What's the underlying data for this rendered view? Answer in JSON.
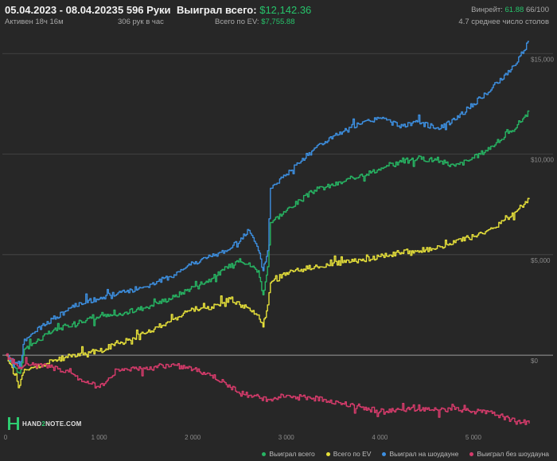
{
  "header": {
    "date_range": "05.04.2023 - 08.04.2023",
    "active": "Активен 18ч 16м",
    "hands": "5 596 Руки",
    "hands_rate": "306 рук в час",
    "won_label": "Выиграл всего:",
    "won_value": "$12,142.36",
    "ev_label": "Всего по EV:",
    "ev_value": "$7,755.88",
    "winrate_label": "Винрейт:",
    "winrate_value": "61.88",
    "winrate_tail": "66/100",
    "tables_text": "4.7 среднее число столов"
  },
  "logo": {
    "text_a": "HAND",
    "text_b": "2",
    "text_c": "NOTE.COM"
  },
  "chart_data": {
    "type": "line",
    "xlim": [
      0,
      5596
    ],
    "ylim": [
      -3600,
      16000
    ],
    "x_ticks": [
      0,
      1000,
      2000,
      3000,
      4000,
      5000
    ],
    "x_tick_labels": [
      "0",
      "1 000",
      "2 000",
      "3 000",
      "4 000",
      "5 000"
    ],
    "y_ticks": [
      0,
      5000,
      10000,
      15000
    ],
    "y_tick_labels": [
      "$0",
      "$5,000",
      "$10,000",
      "$15,000"
    ],
    "grid": true,
    "legend_position": "bottom-right",
    "series": [
      {
        "name": "Выиграл всего",
        "color": "#27b463",
        "x": [
          0,
          150,
          200,
          300,
          500,
          800,
          1000,
          1200,
          1500,
          1800,
          2000,
          2200,
          2500,
          2700,
          2750,
          2800,
          2830,
          3000,
          3300,
          3600,
          3800,
          4000,
          4200,
          4400,
          4600,
          4800,
          5000,
          5200,
          5400,
          5596
        ],
        "values": [
          0,
          -900,
          300,
          600,
          1200,
          1700,
          1900,
          2000,
          2400,
          2900,
          3400,
          3800,
          4800,
          4200,
          3000,
          4400,
          6600,
          7200,
          8200,
          8600,
          9000,
          9200,
          9600,
          9800,
          9700,
          9400,
          9800,
          10400,
          11100,
          12142
        ]
      },
      {
        "name": "Всего по EV",
        "color": "#e6e03a",
        "x": [
          0,
          150,
          200,
          300,
          500,
          800,
          1000,
          1200,
          1500,
          1800,
          2000,
          2200,
          2400,
          2700,
          2750,
          2800,
          2830,
          3000,
          3300,
          3600,
          3800,
          4000,
          4200,
          4400,
          4600,
          4800,
          5000,
          5200,
          5400,
          5596
        ],
        "values": [
          0,
          -1500,
          -700,
          -600,
          -300,
          100,
          200,
          600,
          1100,
          1800,
          2300,
          2400,
          2800,
          2000,
          1400,
          2500,
          3600,
          4100,
          4400,
          4600,
          4700,
          4900,
          5100,
          5200,
          5300,
          5600,
          5900,
          6300,
          6900,
          7756
        ]
      },
      {
        "name": "Выиграл на шоудауне",
        "color": "#3d8fe0",
        "x": [
          0,
          150,
          200,
          300,
          500,
          800,
          1000,
          1200,
          1500,
          1800,
          2000,
          2200,
          2400,
          2600,
          2700,
          2750,
          2800,
          2830,
          3000,
          3300,
          3600,
          3800,
          4000,
          4200,
          4400,
          4600,
          4800,
          5000,
          5200,
          5400,
          5596
        ],
        "values": [
          0,
          -600,
          800,
          1100,
          1800,
          2600,
          2800,
          3100,
          3400,
          4000,
          4600,
          4900,
          5300,
          6200,
          5200,
          4200,
          5200,
          8300,
          9000,
          10300,
          11100,
          11500,
          11800,
          11400,
          11600,
          11300,
          11700,
          12500,
          13300,
          14200,
          15600
        ]
      },
      {
        "name": "Выиграл без шоудауна",
        "color": "#d63b6b",
        "x": [
          0,
          150,
          200,
          300,
          500,
          700,
          800,
          1000,
          1200,
          1500,
          1800,
          2000,
          2200,
          2400,
          2600,
          2800,
          3000,
          3200,
          3400,
          3600,
          3800,
          4000,
          4200,
          4400,
          4600,
          4800,
          5000,
          5200,
          5400,
          5596
        ],
        "values": [
          0,
          -600,
          -500,
          -500,
          -600,
          -900,
          -1200,
          -1600,
          -700,
          -600,
          -500,
          -700,
          -1000,
          -1600,
          -2000,
          -2200,
          -2000,
          -2100,
          -2200,
          -2400,
          -2600,
          -2800,
          -2700,
          -2700,
          -2700,
          -2700,
          -2800,
          -2900,
          -3200,
          -3400
        ]
      }
    ]
  }
}
